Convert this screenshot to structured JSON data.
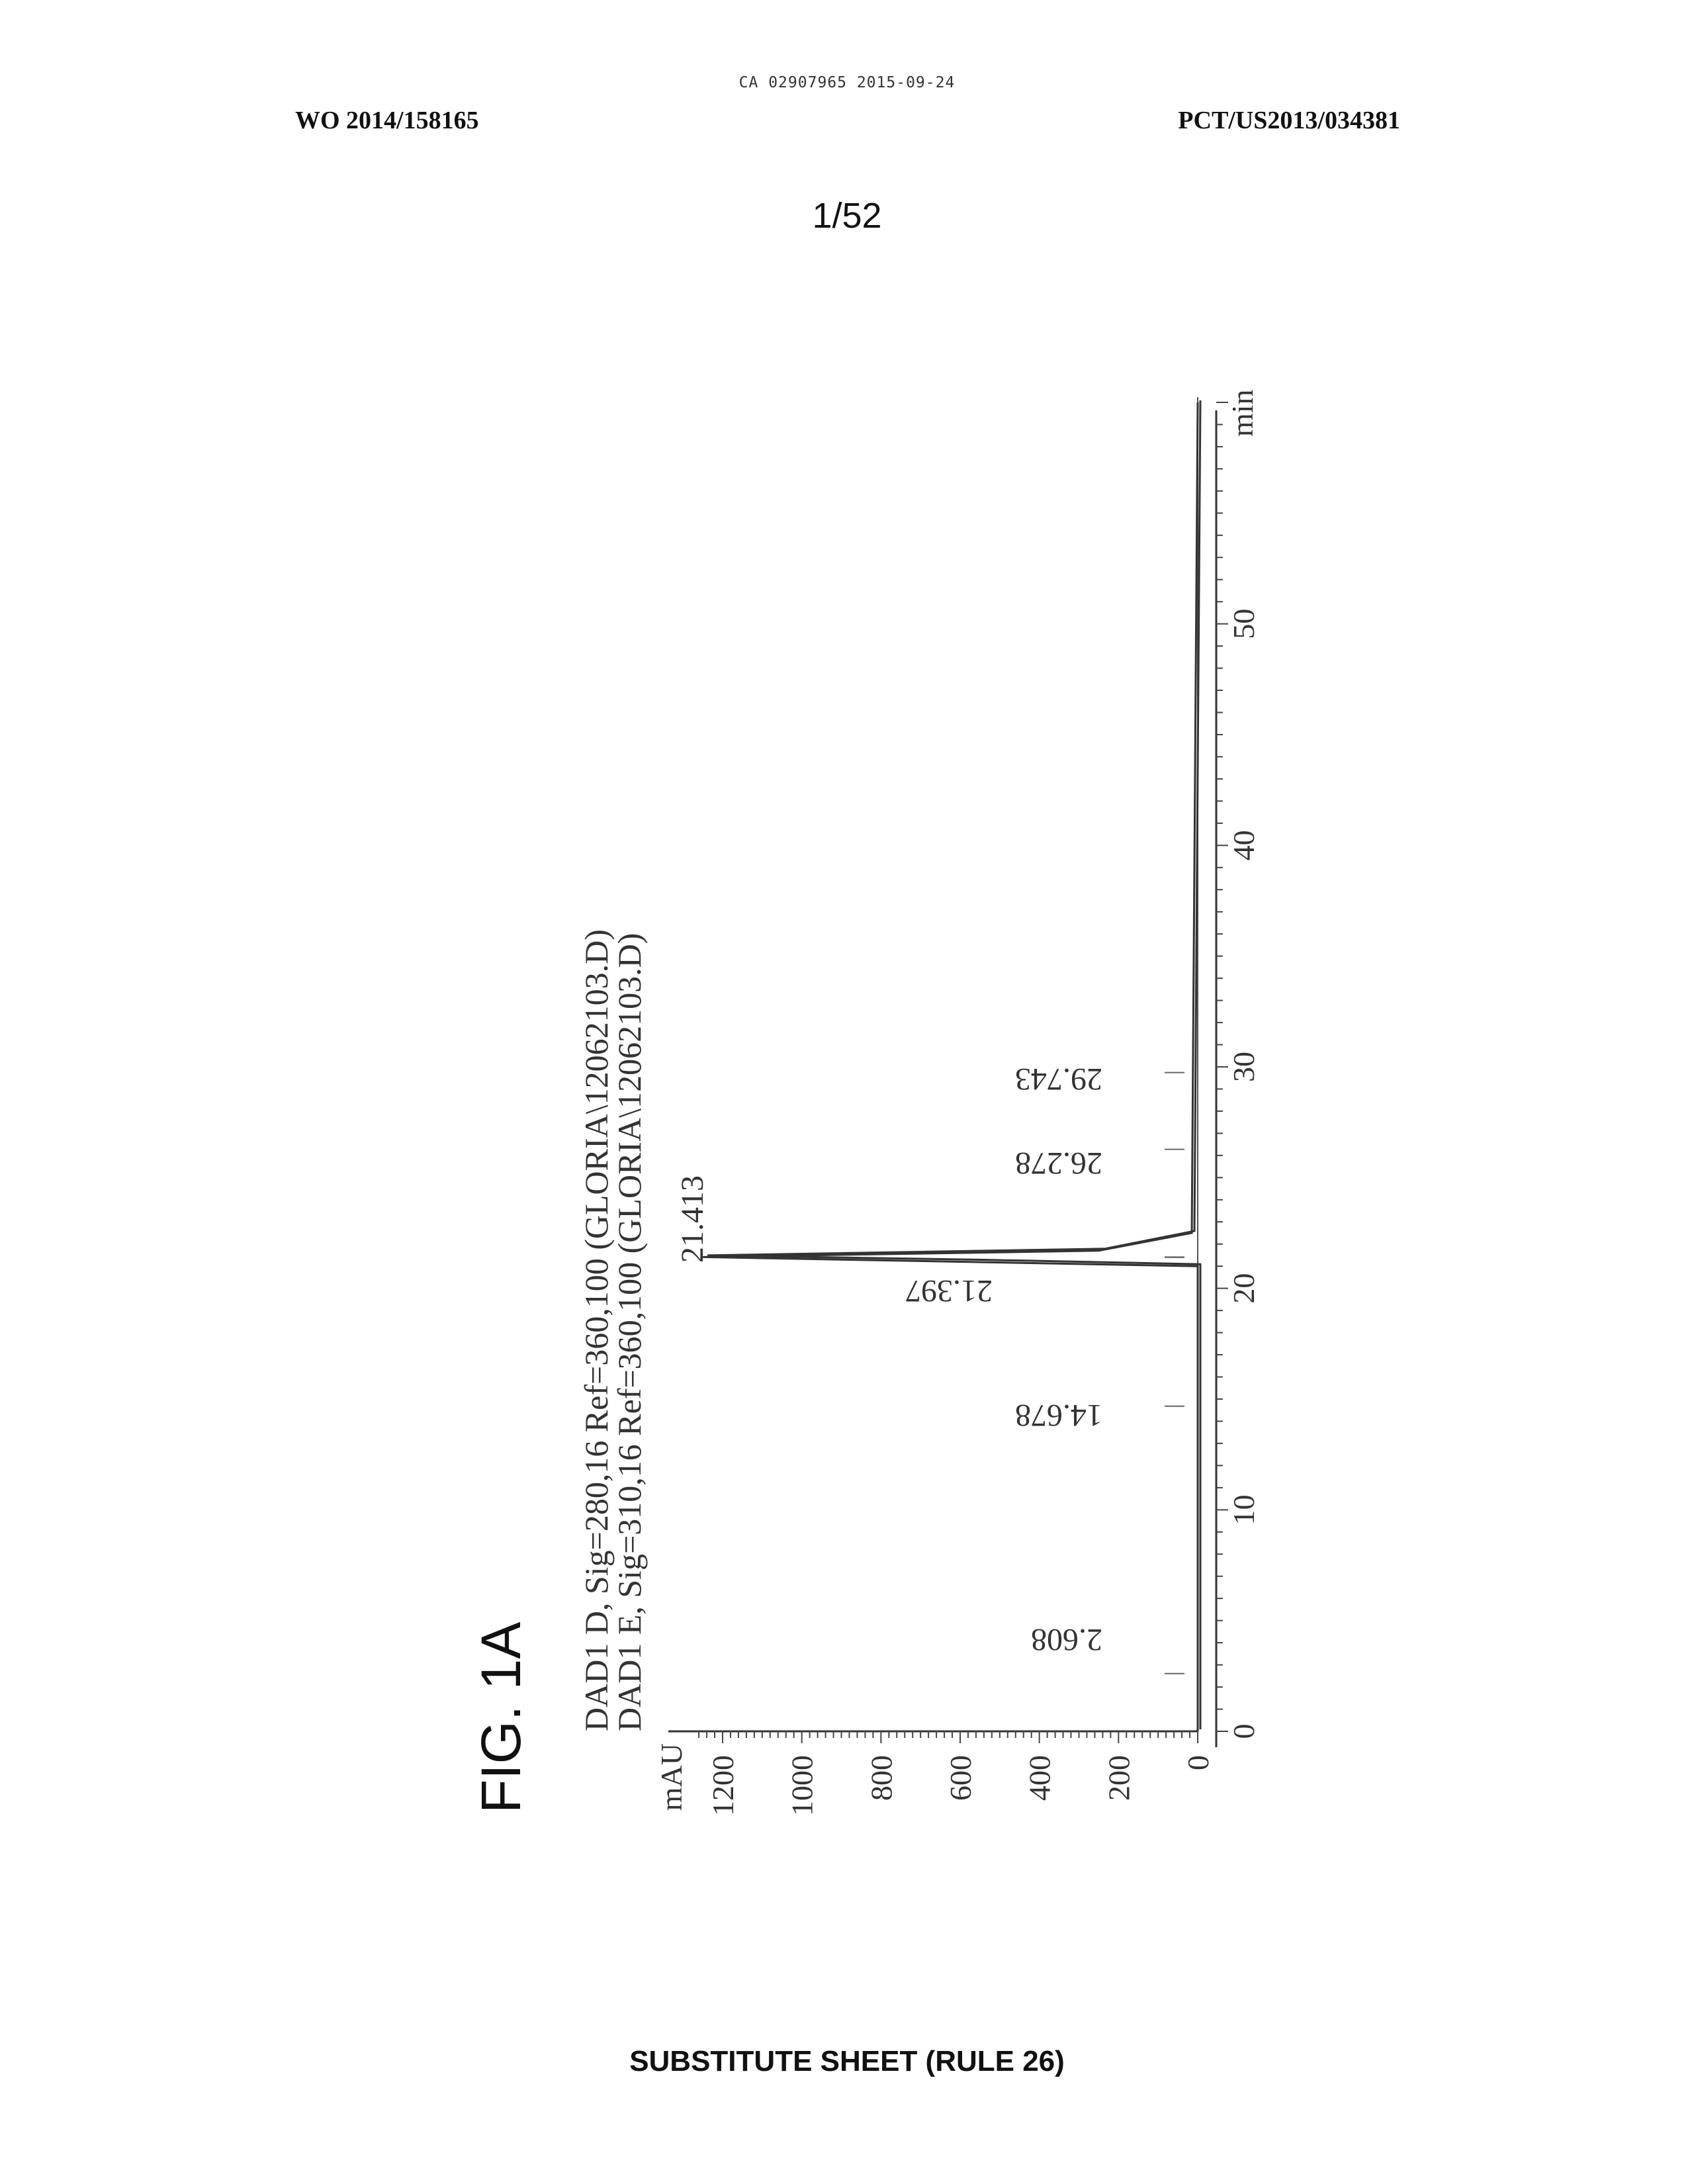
{
  "header": {
    "stamp": "CA 02907965 2015-09-24",
    "left": "WO 2014/158165",
    "right": "PCT/US2013/034381",
    "page_number": "1/52"
  },
  "figure": {
    "label": "FIG. 1A"
  },
  "footer": {
    "text": "SUBSTITUTE SHEET (RULE 26)"
  },
  "chart_data": {
    "type": "line",
    "orientation": "rotated 90 degrees counter-clockwise",
    "legend": [
      "DAD1 D, Sig=280,16 Ref=360,100 (GLORIA\\12062103.D)",
      "DAD1 E, Sig=310,16 Ref=360,100 (GLORIA\\12062103.D)"
    ],
    "xlabel": "min",
    "ylabel": "mAU",
    "xlim": [
      0,
      60
    ],
    "ylim": [
      -50,
      1290
    ],
    "x_ticks": [
      "0",
      "10",
      "20",
      "30",
      "40",
      "50"
    ],
    "y_ticks": [
      "0",
      "200",
      "400",
      "600",
      "800",
      "1000",
      "1200"
    ],
    "series": [
      {
        "name": "DAD1 D, Sig=280,16 Ref=360,100 (GLORIA\\12062103.D)",
        "x": [
          0,
          21.0,
          21.2,
          21.413,
          21.7,
          22.5,
          60
        ],
        "y": [
          0,
          0,
          600,
          1250,
          250,
          15,
          0
        ]
      },
      {
        "name": "DAD1 E, Sig=310,16 Ref=360,100 (GLORIA\\12062103.D)",
        "x": [
          0,
          21.0,
          21.2,
          21.397,
          21.7,
          22.5,
          60
        ],
        "y": [
          0,
          0,
          550,
          1245,
          240,
          15,
          0
        ]
      }
    ],
    "peak_labels": [
      {
        "x": 2.608,
        "label": "2.608"
      },
      {
        "x": 14.678,
        "label": "14.678"
      },
      {
        "x": 21.397,
        "label": "21.397"
      },
      {
        "x": 21.413,
        "label": "21.413"
      },
      {
        "x": 26.278,
        "label": "26.278"
      },
      {
        "x": 29.743,
        "label": "29.743"
      }
    ]
  }
}
